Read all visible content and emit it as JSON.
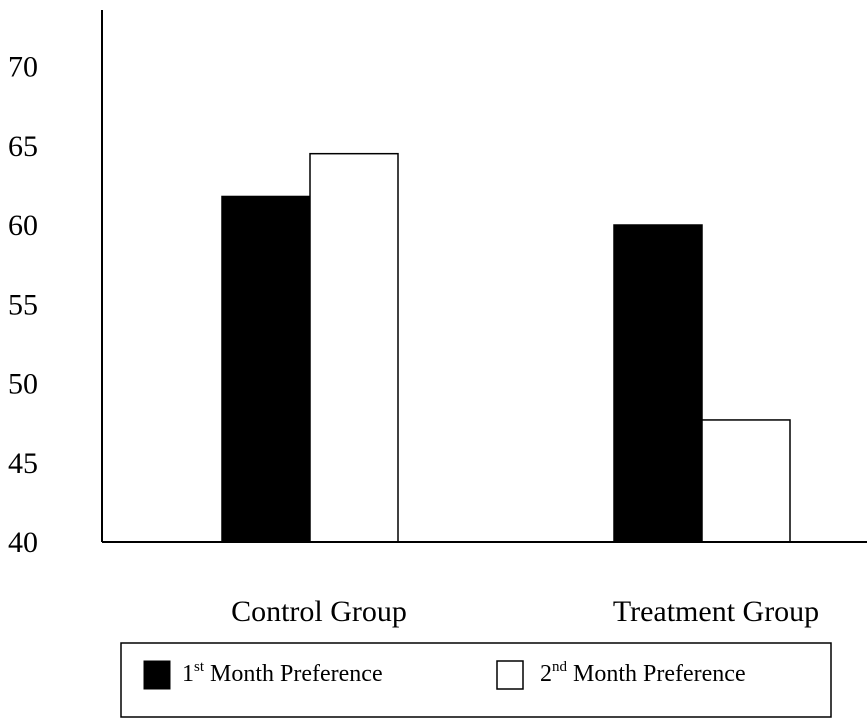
{
  "chart_data": {
    "type": "bar",
    "categories": [
      "Control Group",
      "Treatment Group"
    ],
    "series": [
      {
        "name_base": "1",
        "name_suffix": "st",
        "name_text": " Month Preference",
        "fill": "#000000",
        "values": [
          61.8,
          60.0
        ]
      },
      {
        "name_base": "2",
        "name_suffix": "nd",
        "name_text": " Month Preference",
        "fill": "#ffffff",
        "values": [
          64.5,
          47.7
        ]
      }
    ],
    "y_ticks": [
      "40",
      "45",
      "50",
      "55",
      "60",
      "65",
      "70"
    ],
    "ylim": [
      40,
      72
    ],
    "grid": false,
    "legend_position": "bottom"
  }
}
